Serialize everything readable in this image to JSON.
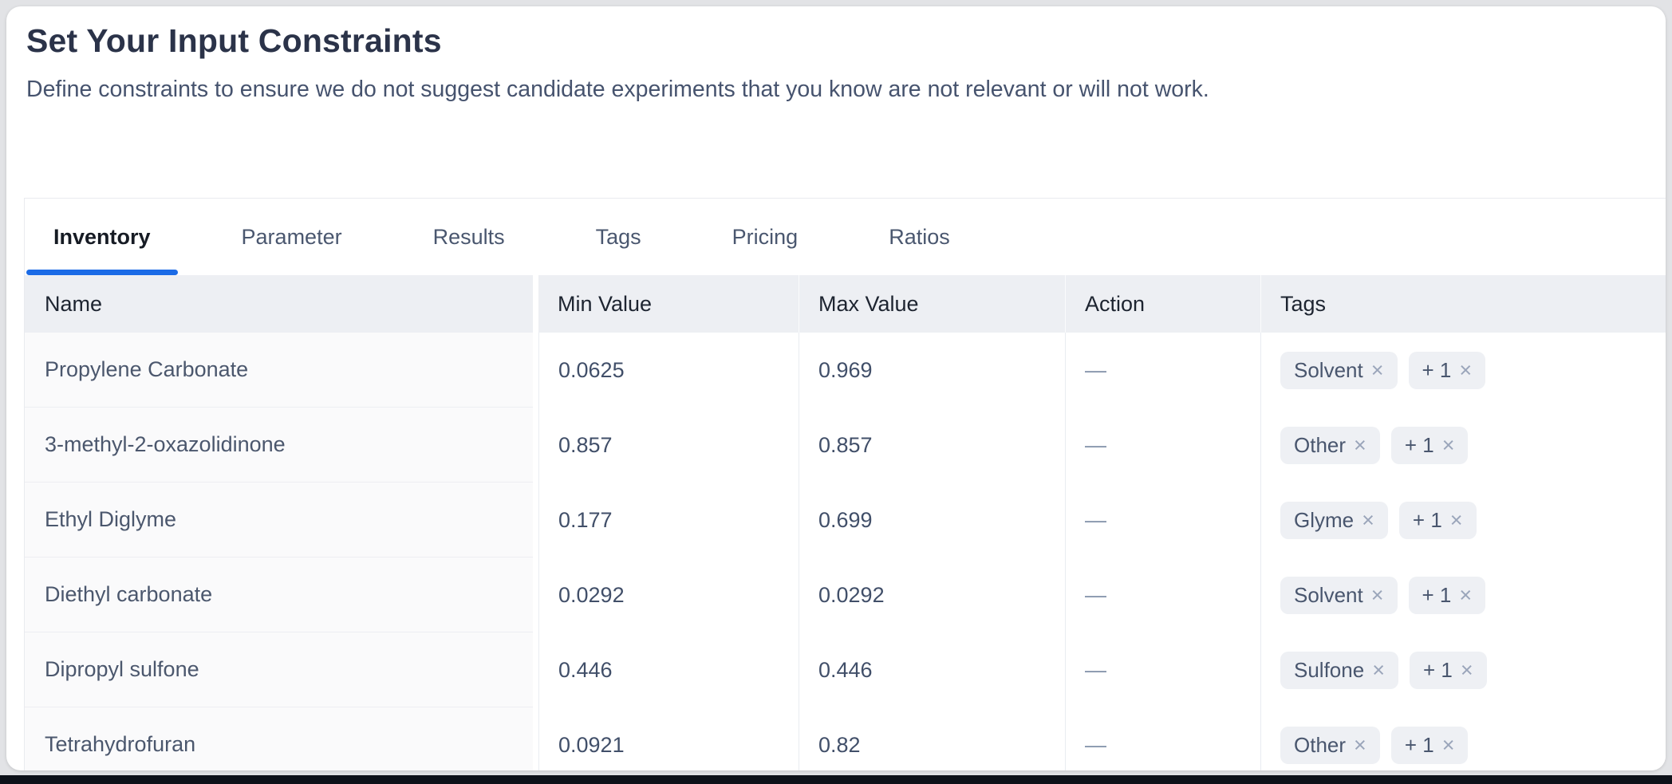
{
  "page": {
    "title": "Set Your Input Constraints",
    "subtitle": "Define constraints to ensure we do not suggest candidate experiments that you know are not relevant or will not work."
  },
  "tabs": [
    {
      "label": "Inventory",
      "active": true
    },
    {
      "label": "Parameter",
      "active": false
    },
    {
      "label": "Results",
      "active": false
    },
    {
      "label": "Tags",
      "active": false
    },
    {
      "label": "Pricing",
      "active": false
    },
    {
      "label": "Ratios",
      "active": false
    }
  ],
  "table": {
    "columns": [
      "Name",
      "Min Value",
      "Max Value",
      "Action",
      "Tags"
    ],
    "remove_icon": "×",
    "rows": [
      {
        "name": "Propylene Carbonate",
        "min": "0.0625",
        "max": "0.969",
        "action": "—",
        "tags": [
          "Solvent",
          "+ 1"
        ]
      },
      {
        "name": "3-methyl-2-oxazolidinone",
        "min": "0.857",
        "max": "0.857",
        "action": "—",
        "tags": [
          "Other",
          "+ 1"
        ]
      },
      {
        "name": "Ethyl Diglyme",
        "min": "0.177",
        "max": "0.699",
        "action": "—",
        "tags": [
          "Glyme",
          "+ 1"
        ]
      },
      {
        "name": "Diethyl carbonate",
        "min": "0.0292",
        "max": "0.0292",
        "action": "—",
        "tags": [
          "Solvent",
          "+ 1"
        ]
      },
      {
        "name": "Dipropyl sulfone",
        "min": "0.446",
        "max": "0.446",
        "action": "—",
        "tags": [
          "Sulfone",
          "+ 1"
        ]
      },
      {
        "name": "Tetrahydrofuran",
        "min": "0.0921",
        "max": "0.82",
        "action": "—",
        "tags": [
          "Other",
          "+ 1"
        ]
      }
    ]
  },
  "colors": {
    "accent_blue": "#1b6be6",
    "header_bg": "#edeff3",
    "tag_bg": "#eef0f4",
    "card_bg": "#ffffff",
    "page_bg": "#e2e3e6",
    "bottom_band": "#0d1119"
  }
}
